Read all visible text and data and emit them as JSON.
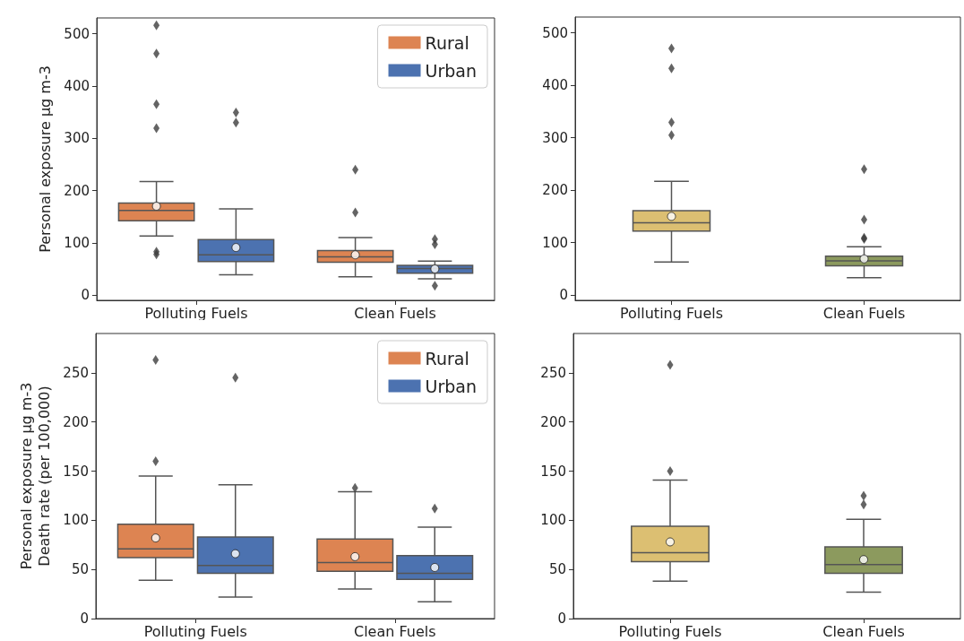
{
  "chart_data": [
    {
      "type": "box",
      "categories": [
        "Polluting Fuels",
        "Clean Fuels"
      ],
      "ylabel": "Personal exposure µg m-3",
      "ylim": [
        -10,
        530
      ],
      "yticks": [
        0,
        100,
        200,
        300,
        400,
        500
      ],
      "legend": "top right",
      "grid": false,
      "series": [
        {
          "name": "Rural",
          "color": "#dd8452",
          "boxes": [
            {
              "low": 113,
              "q1": 142,
              "median": 162,
              "q3": 176,
              "high": 217,
              "mean": 170,
              "outliers": [
                78,
                83,
                319,
                365,
                462,
                516
              ]
            },
            {
              "low": 35,
              "q1": 63,
              "median": 73,
              "q3": 85,
              "high": 110,
              "mean": 77,
              "outliers": [
                158,
                240
              ]
            }
          ]
        },
        {
          "name": "Urban",
          "color": "#4c72b0",
          "boxes": [
            {
              "low": 39,
              "q1": 64,
              "median": 77,
              "q3": 106,
              "high": 165,
              "mean": 91,
              "outliers": [
                330,
                349
              ]
            },
            {
              "low": 31,
              "q1": 42,
              "median": 51,
              "q3": 57,
              "high": 65,
              "mean": 50,
              "outliers": [
                18,
                97,
                107
              ]
            }
          ]
        }
      ]
    },
    {
      "type": "box",
      "categories": [
        "Polluting Fuels",
        "Clean Fuels"
      ],
      "ylim": [
        -10,
        530
      ],
      "yticks": [
        0,
        100,
        200,
        300,
        400,
        500
      ],
      "grid": false,
      "series": [
        {
          "colors": [
            "#dcbf72",
            "#8c9a5e"
          ],
          "boxes": [
            {
              "low": 63,
              "q1": 122,
              "median": 138,
              "q3": 161,
              "high": 217,
              "mean": 150,
              "outliers": [
                305,
                329,
                432,
                470
              ]
            },
            {
              "low": 33,
              "q1": 56,
              "median": 65,
              "q3": 74,
              "high": 92,
              "mean": 69,
              "outliers": [
                107,
                109,
                144,
                240
              ]
            }
          ]
        }
      ]
    },
    {
      "type": "box",
      "categories": [
        "Polluting Fuels",
        "Clean Fuels"
      ],
      "ylabel": "Personal exposure µg m-3\nDeath rate (per 100,000)",
      "ylim": [
        0,
        290
      ],
      "yticks": [
        0,
        50,
        100,
        150,
        200,
        250
      ],
      "legend": "top right",
      "grid": false,
      "series": [
        {
          "name": "Rural",
          "color": "#dd8452",
          "boxes": [
            {
              "low": 39,
              "q1": 62,
              "median": 71,
              "q3": 96,
              "high": 145,
              "mean": 82,
              "outliers": [
                160,
                263
              ]
            },
            {
              "low": 30,
              "q1": 48,
              "median": 57,
              "q3": 81,
              "high": 129,
              "mean": 63,
              "outliers": [
                133
              ]
            }
          ]
        },
        {
          "name": "Urban",
          "color": "#4c72b0",
          "boxes": [
            {
              "low": 22,
              "q1": 46,
              "median": 54,
              "q3": 83,
              "high": 136,
              "mean": 66,
              "outliers": [
                245
              ]
            },
            {
              "low": 17,
              "q1": 40,
              "median": 46,
              "q3": 64,
              "high": 93,
              "mean": 52,
              "outliers": [
                112
              ]
            }
          ]
        }
      ]
    },
    {
      "type": "box",
      "categories": [
        "Polluting Fuels",
        "Clean Fuels"
      ],
      "ylim": [
        0,
        290
      ],
      "yticks": [
        0,
        50,
        100,
        150,
        200,
        250
      ],
      "grid": false,
      "series": [
        {
          "colors": [
            "#dcbf72",
            "#8c9a5e"
          ],
          "boxes": [
            {
              "low": 38,
              "q1": 58,
              "median": 67,
              "q3": 94,
              "high": 141,
              "mean": 78,
              "outliers": [
                150,
                258
              ]
            },
            {
              "low": 27,
              "q1": 46,
              "median": 55,
              "q3": 73,
              "high": 101,
              "mean": 60,
              "outliers": [
                116,
                125
              ]
            }
          ]
        }
      ]
    }
  ]
}
